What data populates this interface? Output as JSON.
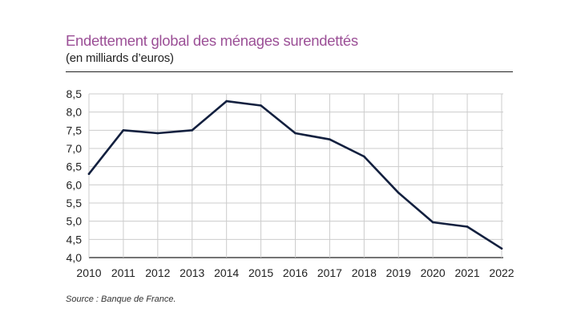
{
  "title": "Endettement global des ménages surendettés",
  "subtitle": "(en milliards d’euros)",
  "source": "Source : Banque de France.",
  "colors": {
    "title": "#9b4f96",
    "line": "#13203f",
    "grid": "#cccccc",
    "axis": "#222222"
  },
  "chart_data": {
    "type": "line",
    "title": "Endettement global des ménages surendettés",
    "subtitle": "(en milliards d’euros)",
    "xlabel": "",
    "ylabel": "",
    "x": [
      "2010",
      "2011",
      "2012",
      "2013",
      "2014",
      "2015",
      "2016",
      "2017",
      "2018",
      "2019",
      "2020",
      "2021",
      "2022"
    ],
    "series": [
      {
        "name": "Endettement global",
        "values": [
          6.3,
          7.5,
          7.42,
          7.5,
          8.3,
          8.18,
          7.42,
          7.25,
          6.78,
          5.78,
          4.97,
          4.85,
          4.25
        ]
      }
    ],
    "ylim": [
      4.0,
      8.5
    ],
    "yticks": [
      "4,0",
      "4,5",
      "5,0",
      "5,5",
      "6,0",
      "6,5",
      "7,0",
      "7,5",
      "8,0",
      "8,5"
    ],
    "grid": true,
    "legend": "none"
  }
}
